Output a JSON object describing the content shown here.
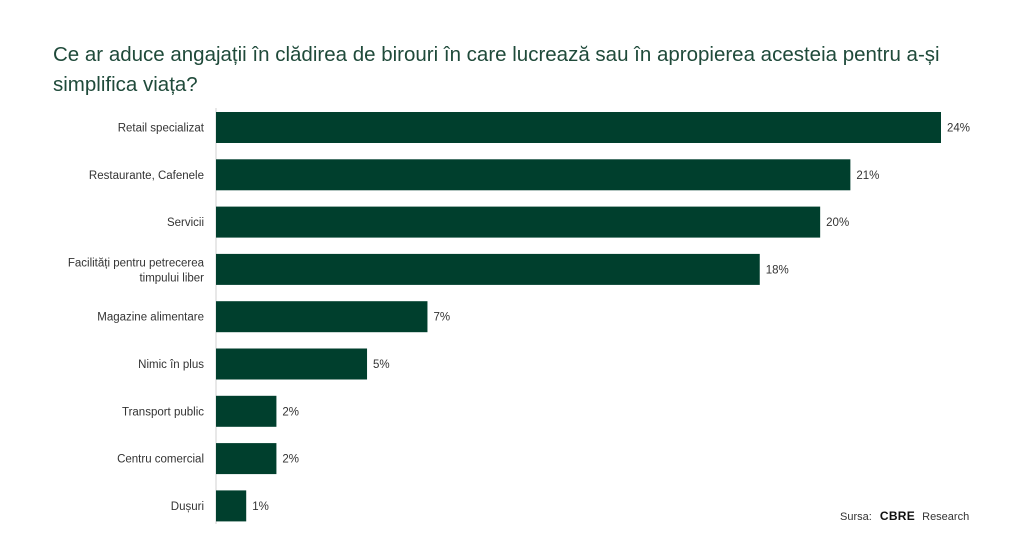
{
  "chart_data": {
    "type": "bar",
    "orientation": "horizontal",
    "title": "Ce ar aduce angajații în clădirea de birouri în care lucrează sau în apropierea acesteia pentru a-și simplifica viața?",
    "categories": [
      "Retail specializat",
      "Restaurante, Cafenele",
      "Servicii",
      "Facilități pentru petrecerea timpului liber",
      "Magazine alimentare",
      "Nimic în plus",
      "Transport public",
      "Centru comercial",
      "Dușuri"
    ],
    "values": [
      24,
      21,
      20,
      18,
      7,
      5,
      2,
      2,
      1
    ],
    "bar_value_fractions": [
      0.24,
      0.21,
      0.2,
      0.18,
      0.07,
      0.05,
      0.02,
      0.02,
      0.01
    ],
    "value_labels": [
      "24%",
      "21%",
      "20%",
      "18%",
      "7%",
      "5%",
      "2%",
      "2%",
      "1%"
    ],
    "xlim": [
      0,
      0.24
    ],
    "grid": false,
    "bar_color": "#003f2d"
  },
  "source": {
    "prefix": "Sursa:",
    "logo": "CBRE",
    "suffix": "Research"
  }
}
